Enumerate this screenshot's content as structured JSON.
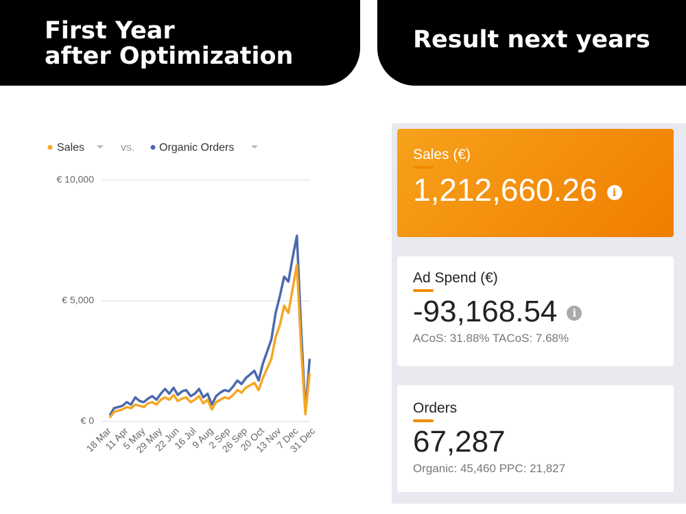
{
  "header": {
    "left_lines": [
      "First Year",
      "after Optimization"
    ],
    "right": "Result next years"
  },
  "chart_data": {
    "type": "line",
    "legend": {
      "label_left": "Sales",
      "separator": "vs.",
      "label_right": "Organic Orders"
    },
    "categories": [
      "18 Mar",
      null,
      null,
      null,
      "11 Apr",
      null,
      null,
      null,
      "5 May",
      null,
      null,
      null,
      "29 May",
      null,
      null,
      null,
      "22 Jun",
      null,
      null,
      null,
      "16 Jul",
      null,
      null,
      null,
      "9 Aug",
      null,
      null,
      null,
      "2 Sep",
      null,
      null,
      null,
      "26 Sep",
      null,
      null,
      null,
      "20 Oct",
      null,
      null,
      null,
      "13 Nov",
      null,
      null,
      null,
      "7 Dec",
      null,
      null,
      null,
      "31 Dec"
    ],
    "series": [
      {
        "name": "Organic Orders",
        "color": "#4a6aad",
        "values": [
          250,
          550,
          600,
          650,
          800,
          700,
          1000,
          850,
          800,
          950,
          1050,
          900,
          1150,
          1350,
          1150,
          1400,
          1100,
          1250,
          1300,
          1050,
          1150,
          1350,
          1000,
          1150,
          700,
          1050,
          1200,
          1300,
          1250,
          1450,
          1700,
          1550,
          1800,
          1950,
          2100,
          1700,
          2400,
          2900,
          3400,
          4500,
          5200,
          6000,
          5800,
          6800,
          7700,
          3800,
          400,
          2600,
          null
        ]
      },
      {
        "name": "Sales",
        "color": "#f5a623",
        "values": [
          150,
          400,
          450,
          500,
          600,
          550,
          700,
          650,
          600,
          750,
          800,
          700,
          900,
          1000,
          900,
          1100,
          850,
          950,
          1000,
          800,
          900,
          1050,
          750,
          900,
          500,
          800,
          900,
          1000,
          950,
          1100,
          1300,
          1200,
          1400,
          1500,
          1600,
          1300,
          1800,
          2200,
          2600,
          3500,
          4000,
          4800,
          4500,
          5500,
          6500,
          3000,
          300,
          2000,
          null
        ]
      }
    ],
    "ylim": [
      0,
      10000
    ],
    "yticks": [
      {
        "value": 0,
        "label": "€ 0"
      },
      {
        "value": 5000,
        "label": "€ 5,000"
      },
      {
        "value": 10000,
        "label": "€ 10,000"
      }
    ],
    "grid": true
  },
  "cards": [
    {
      "title": "Sales (€)",
      "value": "1,212,660.26"
    },
    {
      "title": "Ad Spend (€)",
      "value": "-93,168.54",
      "sub": "ACoS: 31.88% TACoS: 7.68%"
    },
    {
      "title": "Orders",
      "value": "67,287",
      "sub": "Organic: 45,460 PPC: 21,827"
    }
  ]
}
